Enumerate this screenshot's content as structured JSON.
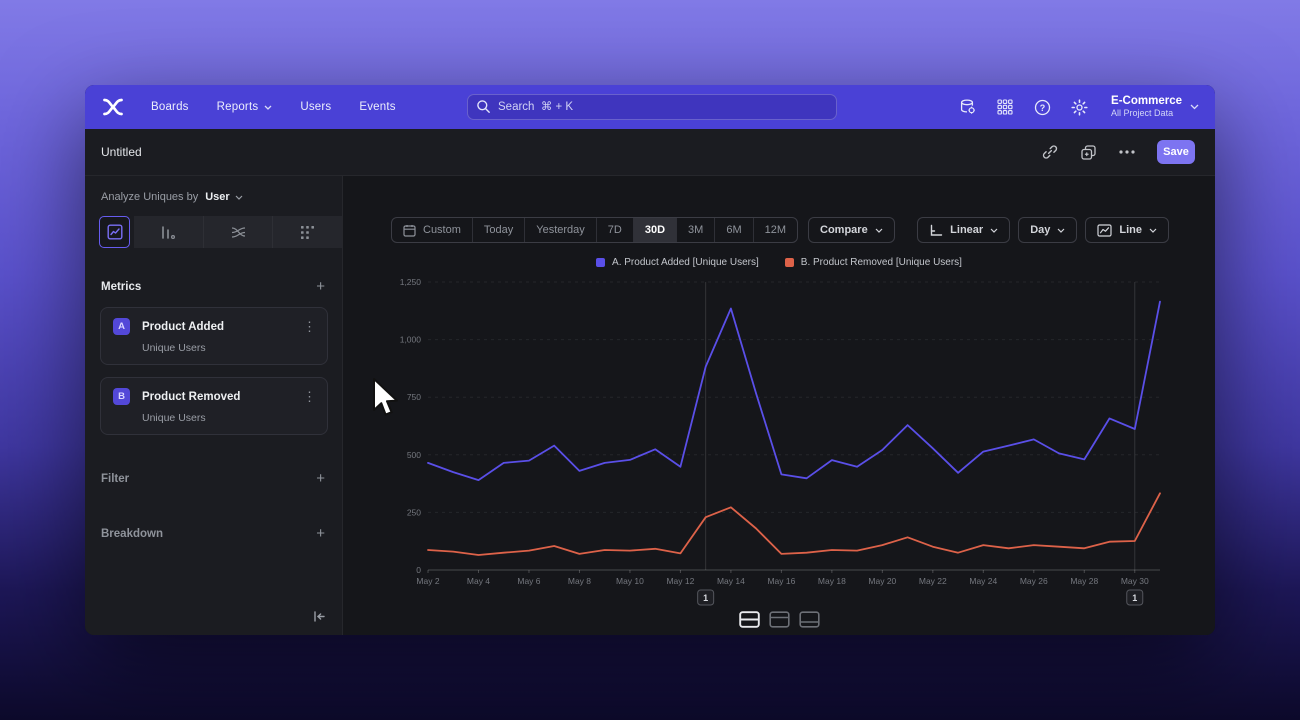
{
  "topnav": {
    "nav_items": [
      "Boards",
      "Reports",
      "Users",
      "Events"
    ],
    "search_placeholder": "Search  ⌘ + K",
    "project_name": "E-Commerce",
    "project_subtitle": "All Project Data"
  },
  "titlebar": {
    "title": "Untitled",
    "save_label": "Save"
  },
  "sidebar": {
    "analyze_prefix": "Analyze Uniques by",
    "analyze_value": "User",
    "metrics_label": "Metrics",
    "metrics": [
      {
        "letter": "A",
        "name": "Product Added",
        "subtitle": "Unique Users"
      },
      {
        "letter": "B",
        "name": "Product Removed",
        "subtitle": "Unique Users"
      }
    ],
    "filter_label": "Filter",
    "breakdown_label": "Breakdown"
  },
  "toolbar": {
    "ranges": [
      "Custom",
      "Today",
      "Yesterday",
      "7D",
      "30D",
      "3M",
      "6M",
      "12M"
    ],
    "active_range": "30D",
    "compare_label": "Compare",
    "linear_label": "Linear",
    "day_label": "Day",
    "line_label": "Line"
  },
  "chart_data": {
    "type": "line",
    "x": [
      "May 2",
      "May 3",
      "May 4",
      "May 5",
      "May 6",
      "May 7",
      "May 8",
      "May 9",
      "May 10",
      "May 11",
      "May 12",
      "May 13",
      "May 14",
      "May 15",
      "May 16",
      "May 17",
      "May 18",
      "May 19",
      "May 20",
      "May 21",
      "May 22",
      "May 23",
      "May 24",
      "May 25",
      "May 26",
      "May 27",
      "May 28",
      "May 29",
      "May 30",
      "May 31"
    ],
    "x_label_step": 2,
    "ylim": [
      0,
      1250
    ],
    "yticks": [
      0,
      250,
      500,
      750,
      1000,
      1250
    ],
    "ytick_labels": [
      "0",
      "250",
      "500",
      "750",
      "1,000",
      "1,250"
    ],
    "grid": true,
    "legend_position": "top",
    "legend": [
      "A. Product Added [Unique Users]",
      "B. Product Removed [Unique Users]"
    ],
    "series": [
      {
        "name": "Product Added [Unique Users]",
        "color": "#5a4fe8",
        "values": [
          465,
          425,
          390,
          465,
          475,
          540,
          430,
          465,
          478,
          524,
          448,
          883,
          1135,
          766,
          415,
          398,
          477,
          448,
          521,
          629,
          528,
          422,
          514,
          540,
          567,
          506,
          480,
          658,
          612,
          1165
        ]
      },
      {
        "name": "Product Removed [Unique Users]",
        "color": "#dd6249",
        "values": [
          87,
          80,
          65,
          75,
          84,
          104,
          70,
          87,
          84,
          92,
          72,
          229,
          272,
          180,
          70,
          75,
          87,
          84,
          108,
          142,
          101,
          75,
          108,
          94,
          108,
          101,
          94,
          123,
          126,
          333
        ]
      }
    ],
    "annotations": [
      {
        "x": "May 13",
        "x_index": 11,
        "label": "1"
      },
      {
        "x": "May 30",
        "x_index": 28,
        "label": "1"
      }
    ]
  }
}
